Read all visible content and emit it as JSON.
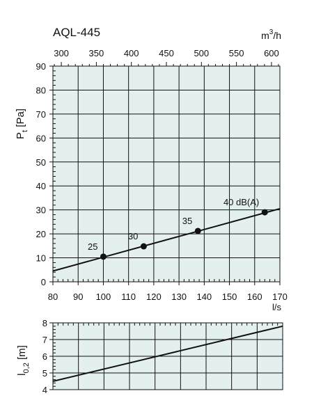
{
  "title": "AQL-445",
  "top_axis": {
    "unit_base": "m",
    "unit_exp": "3",
    "unit_suffix": "/h",
    "ticks": [
      "300",
      "350",
      "400",
      "450",
      "500",
      "550",
      "600"
    ]
  },
  "chart_data": [
    {
      "type": "line",
      "title": "AQL-445",
      "xlabel": "l/s",
      "ylabel": "Pt [Pa]",
      "ylabel_main": "P",
      "ylabel_sub": "t",
      "ylabel_rest": " [Pa]",
      "x_ticks": [
        "80",
        "90",
        "100",
        "110",
        "120",
        "130",
        "140",
        "150",
        "160",
        "170"
      ],
      "y_ticks": [
        "0",
        "10",
        "20",
        "30",
        "40",
        "50",
        "60",
        "70",
        "80",
        "90"
      ],
      "xlim": [
        80,
        170
      ],
      "ylim": [
        0,
        90
      ],
      "grid": true,
      "series": [
        {
          "x": [
            80,
            170
          ],
          "y": [
            4.5,
            30.5
          ]
        }
      ],
      "points": [
        {
          "x": 100,
          "y": 10.5,
          "label": "25"
        },
        {
          "x": 116,
          "y": 14.8,
          "label": "30"
        },
        {
          "x": 137.5,
          "y": 21.2,
          "label": "35"
        },
        {
          "x": 164,
          "y": 29,
          "label": "40 dB(A)"
        }
      ]
    },
    {
      "type": "line",
      "ylabel": "l0,2 [m]",
      "ylabel_main": "l",
      "ylabel_sub": "0,2",
      "ylabel_rest": " [m]",
      "y_ticks": [
        "4",
        "5",
        "6",
        "7",
        "8"
      ],
      "xlim": [
        80,
        170
      ],
      "ylim": [
        4,
        8
      ],
      "grid": true,
      "series": [
        {
          "x": [
            80,
            170
          ],
          "y": [
            4.5,
            7.8
          ]
        }
      ]
    }
  ],
  "colors": {
    "plot_bg": "#e3f0ef",
    "line": "#111111",
    "grid": "#111111"
  }
}
